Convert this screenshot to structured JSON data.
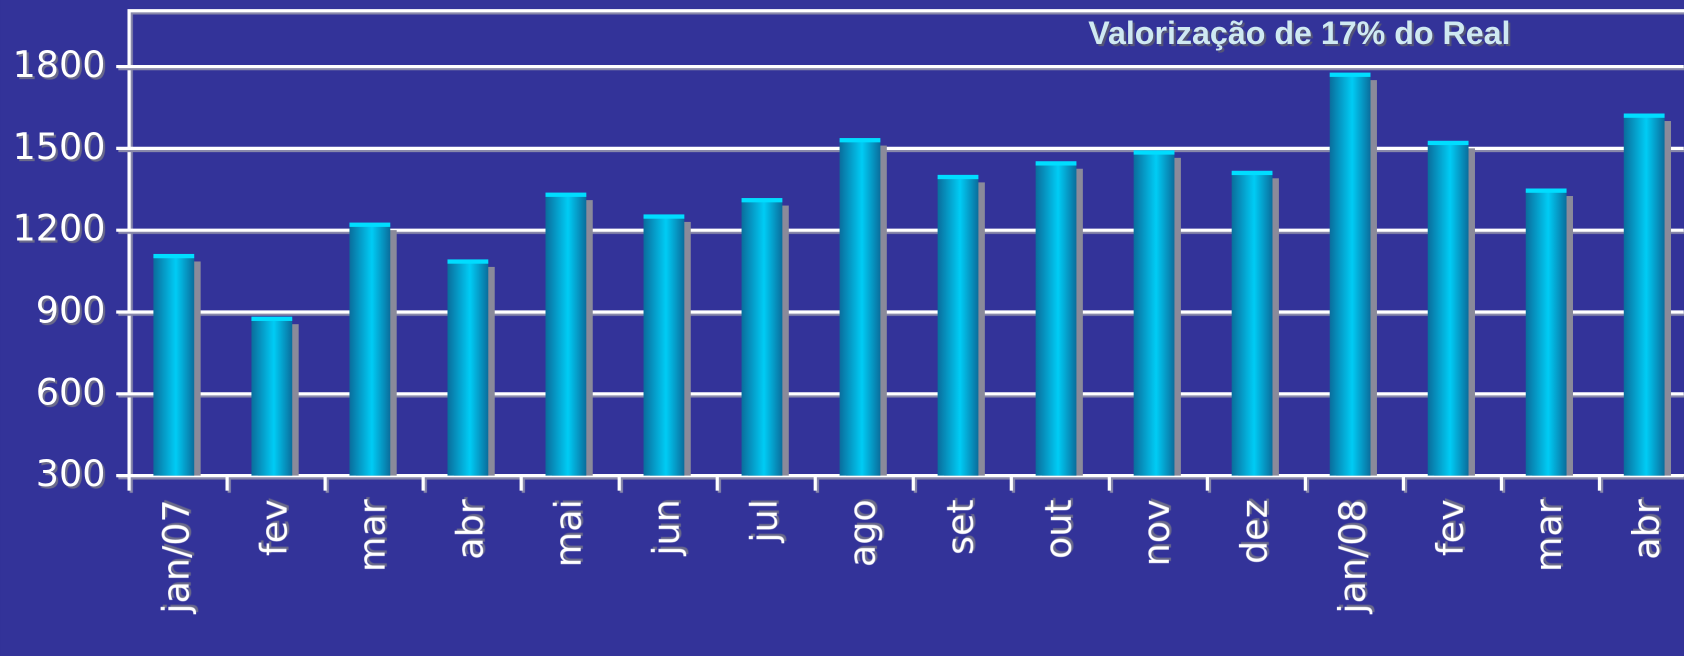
{
  "chart_data": {
    "type": "bar",
    "title": "Valorização de 17% do Real",
    "categories": [
      "jan/07",
      "fev",
      "mar",
      "abr",
      "mai",
      "jun",
      "jul",
      "ago",
      "set",
      "out",
      "nov",
      "dez",
      "jan/08",
      "fev",
      "mar",
      "abr"
    ],
    "values": [
      1105,
      875,
      1220,
      1085,
      1330,
      1250,
      1310,
      1530,
      1395,
      1445,
      1485,
      1410,
      1770,
      1520,
      1345,
      1620
    ],
    "color": "#00c8f0",
    "ylim": [
      300,
      2000
    ],
    "yticks": [
      300,
      600,
      900,
      1200,
      1500,
      1800
    ],
    "grid": true
  }
}
